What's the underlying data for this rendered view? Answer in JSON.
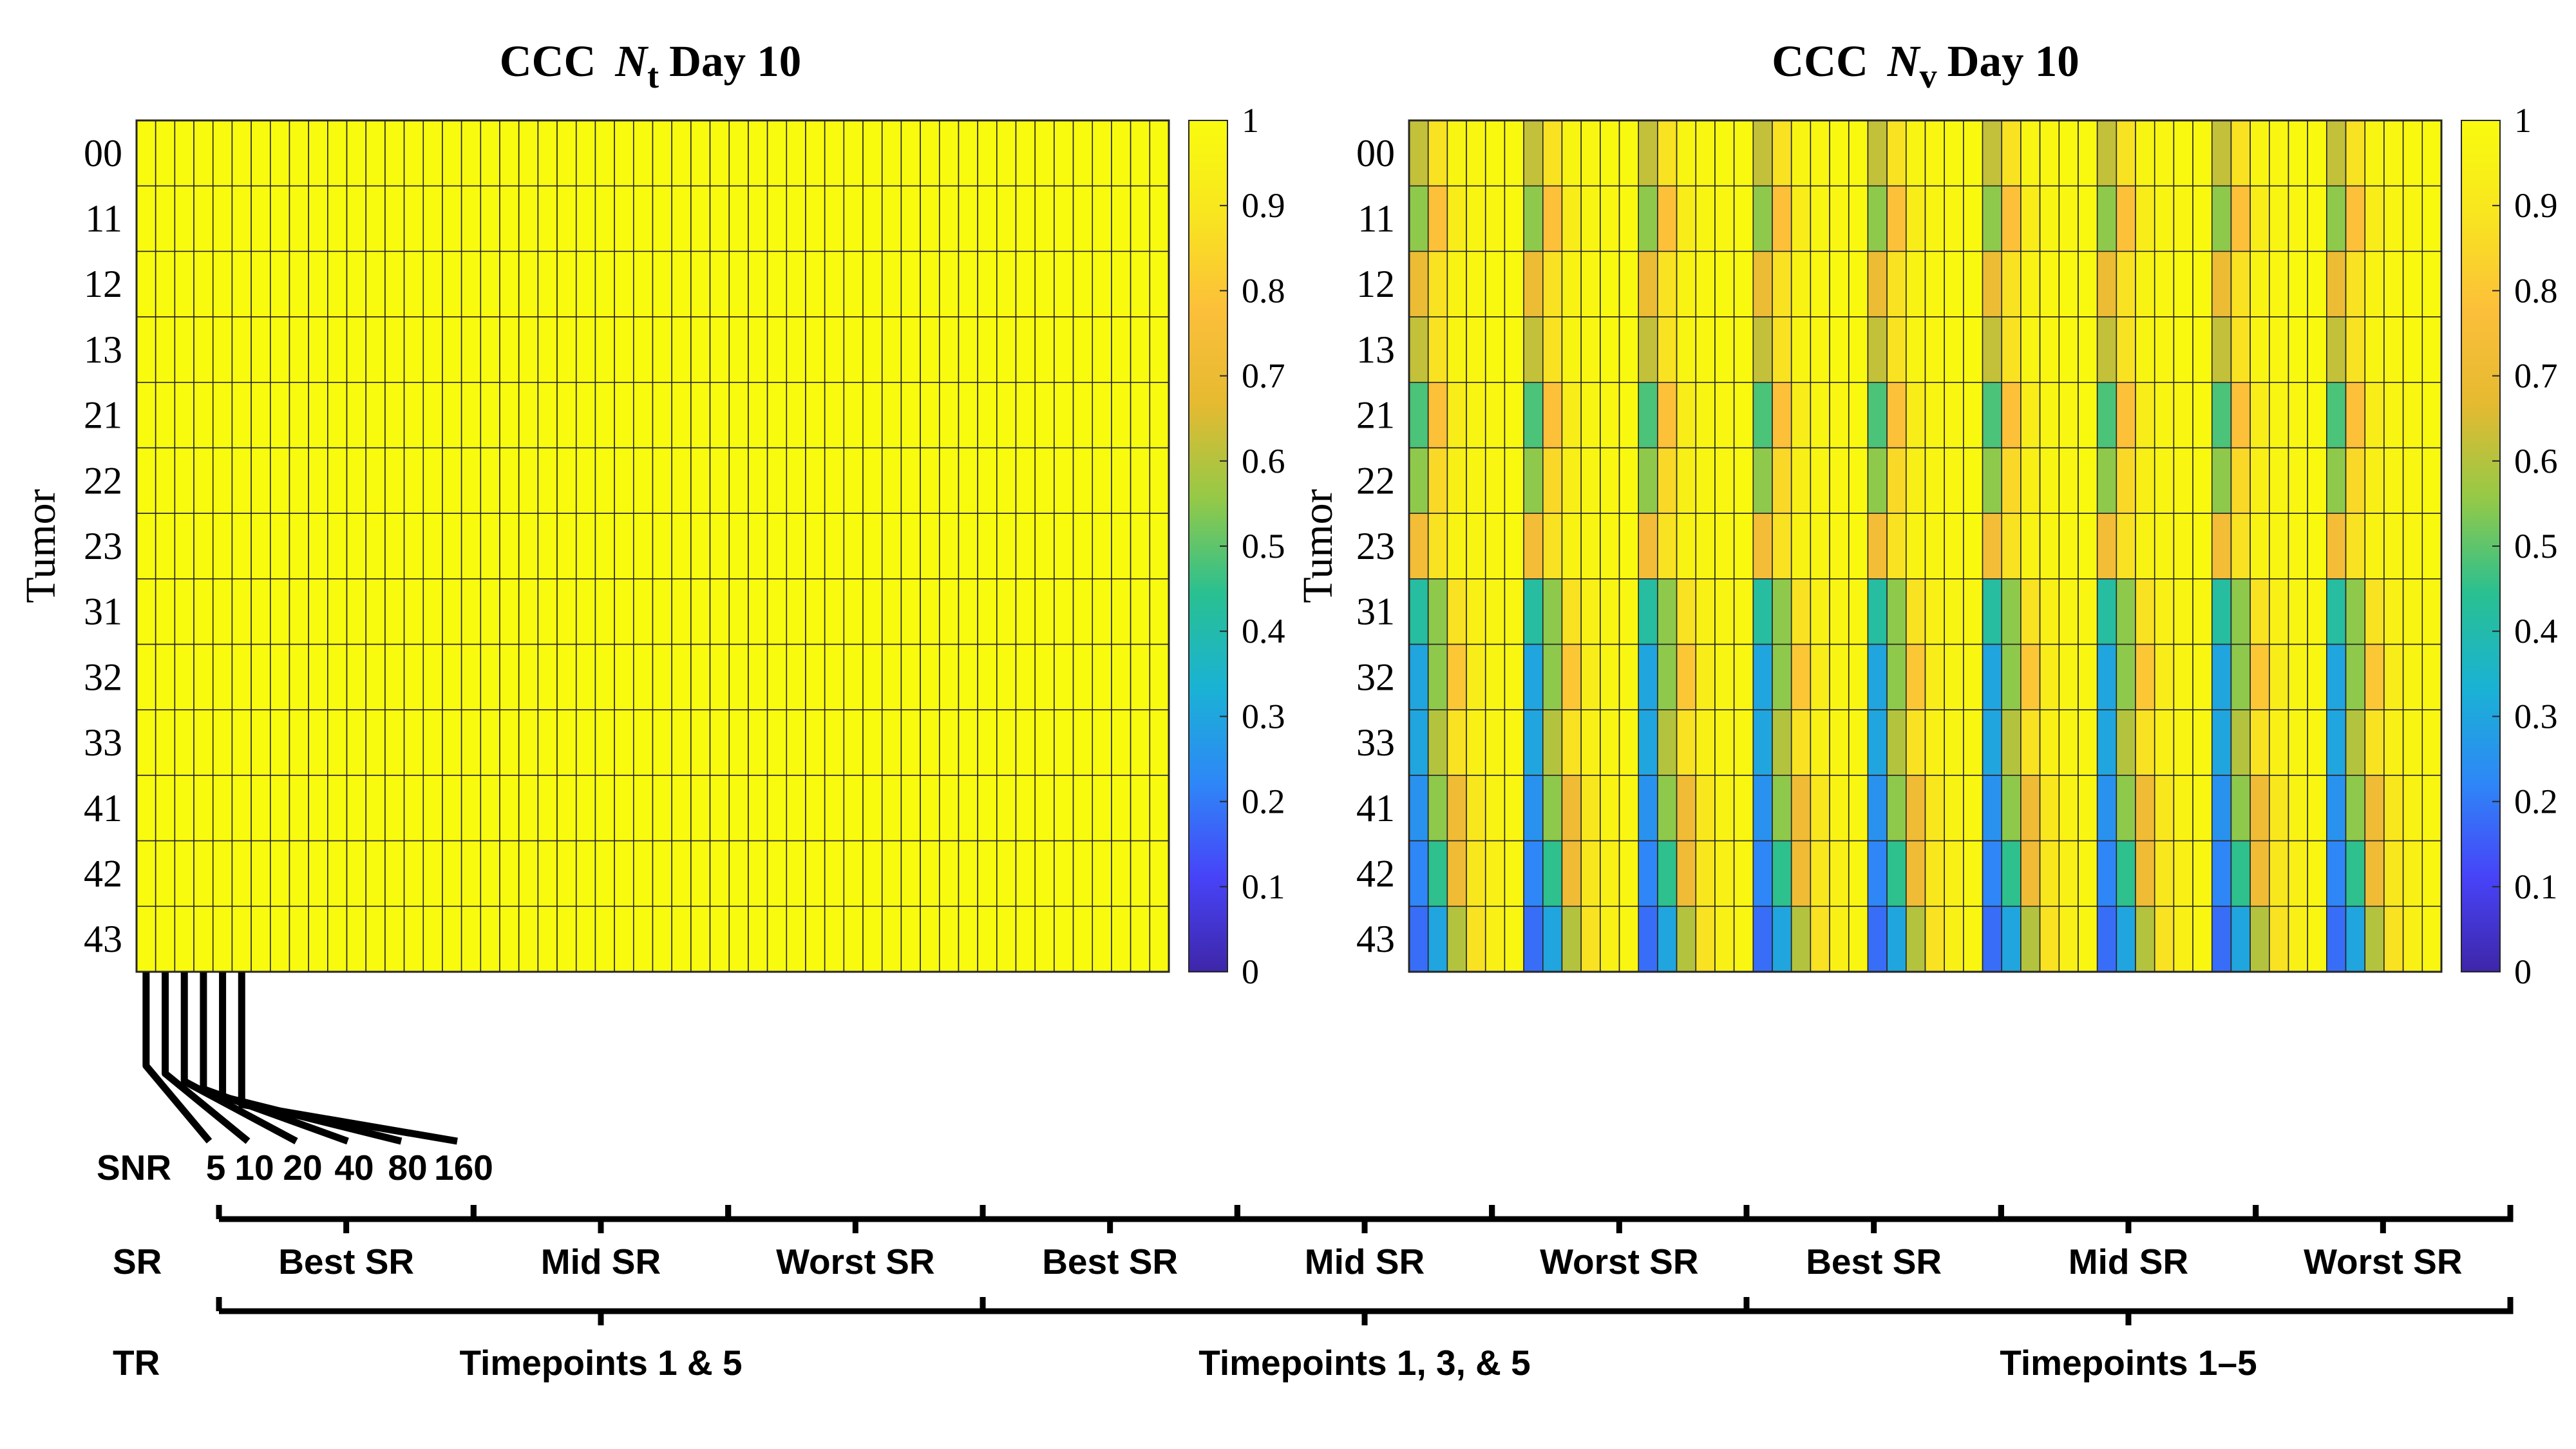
{
  "colormap": [
    "#3e26a8",
    "#4743f8",
    "#2e87f7",
    "#1ab2d4",
    "#29c091",
    "#94c947",
    "#e5ba31",
    "#fcbf3a",
    "#f8e51f",
    "#f9fb0e"
  ],
  "chart_data": [
    {
      "type": "heatmap",
      "title_prefix": "CCC",
      "title_var": "N",
      "title_sub": "t",
      "title_suffix": "Day 10",
      "ylabel": "Tumor",
      "rows": [
        "00",
        "11",
        "12",
        "13",
        "21",
        "22",
        "23",
        "31",
        "32",
        "33",
        "41",
        "42",
        "43"
      ],
      "columns_count": 54,
      "clim": [
        0,
        1
      ],
      "colorbar_ticks": [
        "0",
        "0.1",
        "0.2",
        "0.3",
        "0.4",
        "0.5",
        "0.6",
        "0.7",
        "0.8",
        "0.9",
        "1"
      ],
      "block_profiles": {
        "all": [
          1,
          1,
          1,
          1,
          1,
          1
        ]
      },
      "row_profiles": {
        "00": "all",
        "11": "all",
        "12": "all",
        "13": "all",
        "21": "all",
        "22": "all",
        "23": "all",
        "31": "all",
        "32": "all",
        "33": "all",
        "41": "all",
        "42": "all",
        "43": "all"
      }
    },
    {
      "type": "heatmap",
      "title_prefix": "CCC",
      "title_var": "N",
      "title_sub": "v",
      "title_suffix": "Day 10",
      "ylabel": "Tumor",
      "rows": [
        "00",
        "11",
        "12",
        "13",
        "21",
        "22",
        "23",
        "31",
        "32",
        "33",
        "41",
        "42",
        "43"
      ],
      "columns_count": 54,
      "clim": [
        0,
        1
      ],
      "colorbar_ticks": [
        "0",
        "0.1",
        "0.2",
        "0.3",
        "0.4",
        "0.5",
        "0.6",
        "0.7",
        "0.8",
        "0.9",
        "1"
      ],
      "block_profiles": {
        "00": [
          0.62,
          0.88,
          0.97,
          0.98,
          0.99,
          0.99
        ],
        "11": [
          0.55,
          0.78,
          0.93,
          0.97,
          0.98,
          0.99
        ],
        "12": [
          0.7,
          0.88,
          0.96,
          0.98,
          0.99,
          0.99
        ],
        "13": [
          0.62,
          0.88,
          0.97,
          0.98,
          0.99,
          0.99
        ],
        "21": [
          0.48,
          0.78,
          0.93,
          0.97,
          0.98,
          0.99
        ],
        "22": [
          0.55,
          0.85,
          0.94,
          0.97,
          0.98,
          0.99
        ],
        "23": [
          0.74,
          0.88,
          0.96,
          0.97,
          0.98,
          0.99
        ],
        "31": [
          0.42,
          0.55,
          0.88,
          0.95,
          0.97,
          0.98
        ],
        "32": [
          0.3,
          0.55,
          0.8,
          0.93,
          0.97,
          0.98
        ],
        "33": [
          0.3,
          0.6,
          0.88,
          0.95,
          0.97,
          0.98
        ],
        "41": [
          0.25,
          0.55,
          0.72,
          0.9,
          0.96,
          0.98
        ],
        "42": [
          0.22,
          0.45,
          0.72,
          0.9,
          0.95,
          0.98
        ],
        "43": [
          0.18,
          0.3,
          0.6,
          0.88,
          0.95,
          0.98
        ]
      },
      "row_profiles": {
        "00": "00",
        "11": "11",
        "12": "12",
        "13": "13",
        "21": "21",
        "22": "22",
        "23": "23",
        "31": "31",
        "32": "32",
        "33": "33",
        "41": "41",
        "42": "42",
        "43": "43"
      }
    }
  ],
  "annotation": {
    "snr_label": "SNR",
    "snr_values": [
      "5",
      "10",
      "20",
      "40",
      "80",
      "160"
    ],
    "sr_label": "SR",
    "sr_groups": [
      "Best SR",
      "Mid SR",
      "Worst SR",
      "Best SR",
      "Mid SR",
      "Worst SR",
      "Best SR",
      "Mid SR",
      "Worst SR"
    ],
    "tr_label": "TR",
    "tr_groups": [
      "Timepoints 1 & 5",
      "Timepoints 1, 3, & 5",
      "Timepoints 1–5"
    ]
  }
}
